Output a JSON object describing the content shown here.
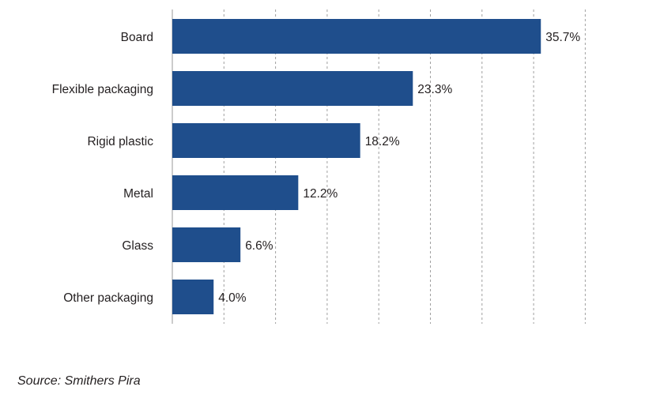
{
  "chart_data": {
    "type": "bar",
    "orientation": "horizontal",
    "categories": [
      "Board",
      "Flexible packaging",
      "Rigid plastic",
      "Metal",
      "Glass",
      "Other packaging"
    ],
    "values": [
      35.7,
      23.3,
      18.2,
      12.2,
      6.6,
      4.0
    ],
    "value_labels": [
      "35.7%",
      "23.3%",
      "18.2%",
      "12.2%",
      "6.6%",
      "4.0%"
    ],
    "xlim": [
      0,
      40
    ],
    "grid": "vertical dashed",
    "bar_color": "#1f4e8c",
    "title": "",
    "xlabel": "",
    "ylabel": ""
  },
  "source": "Source: Smithers Pira"
}
